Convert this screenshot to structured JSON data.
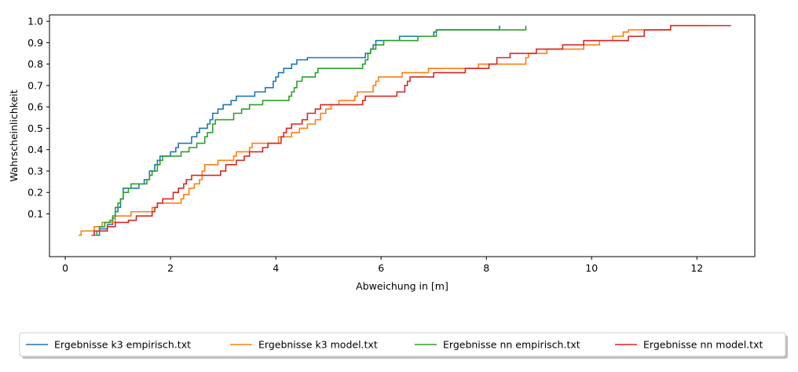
{
  "chart_data": {
    "type": "line",
    "subtype": "empirical-cdf-step",
    "title": "",
    "xlabel": "Abweichung in [m]",
    "ylabel": "Wahrscheinlichkeit",
    "xlim": [
      -0.3,
      13.1
    ],
    "ylim": [
      -0.1,
      1.03
    ],
    "xticks": [
      0,
      2,
      4,
      6,
      8,
      10,
      12
    ],
    "xtick_labels": [
      "0",
      "2",
      "4",
      "6",
      "8",
      "10",
      "12"
    ],
    "yticks": [
      0.1,
      0.2,
      0.3,
      0.4,
      0.5,
      0.6,
      0.7,
      0.8,
      0.9,
      1.0
    ],
    "ytick_labels": [
      "0.1",
      "0.2",
      "0.3",
      "0.4",
      "0.5",
      "0.6",
      "0.7",
      "0.8",
      "0.9",
      "1.0"
    ],
    "grid": false,
    "legend_position": "bottom-center, outside plot, single row",
    "series": [
      {
        "name": "Ergebnisse k3 empirisch.txt",
        "color": "#1f77b4",
        "points": [
          [
            0.6,
            0.0
          ],
          [
            0.65,
            0.03
          ],
          [
            0.8,
            0.05
          ],
          [
            0.9,
            0.08
          ],
          [
            0.95,
            0.11
          ],
          [
            1.0,
            0.13
          ],
          [
            1.05,
            0.17
          ],
          [
            1.1,
            0.22
          ],
          [
            1.2,
            0.22
          ],
          [
            1.4,
            0.24
          ],
          [
            1.5,
            0.26
          ],
          [
            1.6,
            0.3
          ],
          [
            1.7,
            0.33
          ],
          [
            1.75,
            0.35
          ],
          [
            1.8,
            0.37
          ],
          [
            1.9,
            0.37
          ],
          [
            2.0,
            0.39
          ],
          [
            2.1,
            0.41
          ],
          [
            2.15,
            0.43
          ],
          [
            2.3,
            0.43
          ],
          [
            2.4,
            0.46
          ],
          [
            2.5,
            0.48
          ],
          [
            2.55,
            0.5
          ],
          [
            2.7,
            0.52
          ],
          [
            2.75,
            0.54
          ],
          [
            2.8,
            0.57
          ],
          [
            2.9,
            0.59
          ],
          [
            3.0,
            0.61
          ],
          [
            3.15,
            0.63
          ],
          [
            3.25,
            0.65
          ],
          [
            3.4,
            0.65
          ],
          [
            3.6,
            0.67
          ],
          [
            3.8,
            0.69
          ],
          [
            3.95,
            0.72
          ],
          [
            4.0,
            0.74
          ],
          [
            4.05,
            0.76
          ],
          [
            4.15,
            0.78
          ],
          [
            4.3,
            0.8
          ],
          [
            4.4,
            0.82
          ],
          [
            4.6,
            0.83
          ],
          [
            5.7,
            0.85
          ],
          [
            5.8,
            0.87
          ],
          [
            5.85,
            0.89
          ],
          [
            5.9,
            0.91
          ],
          [
            6.35,
            0.93
          ],
          [
            7.0,
            0.95
          ],
          [
            7.05,
            0.96
          ],
          [
            8.25,
            0.98
          ]
        ]
      },
      {
        "name": "Ergebnisse k3 model.txt",
        "color": "#ff7f0e",
        "points": [
          [
            0.25,
            0.0
          ],
          [
            0.3,
            0.02
          ],
          [
            0.55,
            0.04
          ],
          [
            0.7,
            0.06
          ],
          [
            0.95,
            0.09
          ],
          [
            1.25,
            0.11
          ],
          [
            1.65,
            0.13
          ],
          [
            1.75,
            0.15
          ],
          [
            2.2,
            0.17
          ],
          [
            2.25,
            0.19
          ],
          [
            2.35,
            0.22
          ],
          [
            2.45,
            0.24
          ],
          [
            2.55,
            0.26
          ],
          [
            2.6,
            0.3
          ],
          [
            2.65,
            0.33
          ],
          [
            2.9,
            0.35
          ],
          [
            3.2,
            0.37
          ],
          [
            3.25,
            0.39
          ],
          [
            3.5,
            0.41
          ],
          [
            3.55,
            0.43
          ],
          [
            4.05,
            0.46
          ],
          [
            4.3,
            0.48
          ],
          [
            4.45,
            0.5
          ],
          [
            4.6,
            0.52
          ],
          [
            4.75,
            0.54
          ],
          [
            4.85,
            0.57
          ],
          [
            4.95,
            0.59
          ],
          [
            5.05,
            0.61
          ],
          [
            5.2,
            0.63
          ],
          [
            5.5,
            0.65
          ],
          [
            5.55,
            0.67
          ],
          [
            5.85,
            0.7
          ],
          [
            5.9,
            0.72
          ],
          [
            5.95,
            0.74
          ],
          [
            6.4,
            0.76
          ],
          [
            6.9,
            0.78
          ],
          [
            7.85,
            0.8
          ],
          [
            8.25,
            0.8
          ],
          [
            8.75,
            0.83
          ],
          [
            8.8,
            0.85
          ],
          [
            9.15,
            0.87
          ],
          [
            9.85,
            0.89
          ],
          [
            10.15,
            0.91
          ],
          [
            10.4,
            0.93
          ],
          [
            10.6,
            0.95
          ],
          [
            10.7,
            0.96
          ],
          [
            11.5,
            0.98
          ]
        ]
      },
      {
        "name": "Ergebnisse nn empirisch.txt",
        "color": "#2ca02c",
        "points": [
          [
            0.55,
            0.0
          ],
          [
            0.6,
            0.02
          ],
          [
            0.65,
            0.04
          ],
          [
            0.75,
            0.06
          ],
          [
            0.85,
            0.07
          ],
          [
            0.9,
            0.09
          ],
          [
            0.95,
            0.13
          ],
          [
            1.0,
            0.15
          ],
          [
            1.05,
            0.17
          ],
          [
            1.1,
            0.2
          ],
          [
            1.2,
            0.22
          ],
          [
            1.25,
            0.24
          ],
          [
            1.55,
            0.26
          ],
          [
            1.6,
            0.28
          ],
          [
            1.65,
            0.3
          ],
          [
            1.75,
            0.33
          ],
          [
            1.8,
            0.35
          ],
          [
            1.85,
            0.37
          ],
          [
            2.2,
            0.39
          ],
          [
            2.35,
            0.41
          ],
          [
            2.5,
            0.43
          ],
          [
            2.65,
            0.46
          ],
          [
            2.7,
            0.48
          ],
          [
            2.8,
            0.52
          ],
          [
            2.85,
            0.54
          ],
          [
            3.2,
            0.57
          ],
          [
            3.35,
            0.59
          ],
          [
            3.5,
            0.61
          ],
          [
            3.75,
            0.63
          ],
          [
            4.25,
            0.65
          ],
          [
            4.3,
            0.67
          ],
          [
            4.35,
            0.69
          ],
          [
            4.4,
            0.72
          ],
          [
            4.5,
            0.74
          ],
          [
            4.75,
            0.76
          ],
          [
            4.8,
            0.78
          ],
          [
            5.65,
            0.8
          ],
          [
            5.7,
            0.82
          ],
          [
            5.75,
            0.85
          ],
          [
            5.8,
            0.87
          ],
          [
            5.9,
            0.89
          ],
          [
            6.05,
            0.91
          ],
          [
            6.7,
            0.93
          ],
          [
            7.05,
            0.96
          ],
          [
            8.75,
            0.98
          ]
        ]
      },
      {
        "name": "Ergebnisse nn model.txt",
        "color": "#d62728",
        "points": [
          [
            0.5,
            0.0
          ],
          [
            0.55,
            0.02
          ],
          [
            0.8,
            0.04
          ],
          [
            0.95,
            0.06
          ],
          [
            1.2,
            0.07
          ],
          [
            1.35,
            0.09
          ],
          [
            1.65,
            0.11
          ],
          [
            1.7,
            0.13
          ],
          [
            1.75,
            0.15
          ],
          [
            1.85,
            0.17
          ],
          [
            2.05,
            0.2
          ],
          [
            2.15,
            0.22
          ],
          [
            2.25,
            0.24
          ],
          [
            2.3,
            0.26
          ],
          [
            2.4,
            0.28
          ],
          [
            2.95,
            0.3
          ],
          [
            3.05,
            0.33
          ],
          [
            3.25,
            0.35
          ],
          [
            3.4,
            0.37
          ],
          [
            3.5,
            0.39
          ],
          [
            3.75,
            0.41
          ],
          [
            3.85,
            0.43
          ],
          [
            4.1,
            0.46
          ],
          [
            4.15,
            0.48
          ],
          [
            4.2,
            0.5
          ],
          [
            4.3,
            0.52
          ],
          [
            4.5,
            0.54
          ],
          [
            4.6,
            0.57
          ],
          [
            4.75,
            0.59
          ],
          [
            4.85,
            0.61
          ],
          [
            5.65,
            0.63
          ],
          [
            5.7,
            0.65
          ],
          [
            6.3,
            0.67
          ],
          [
            6.45,
            0.7
          ],
          [
            6.5,
            0.72
          ],
          [
            6.55,
            0.74
          ],
          [
            7.0,
            0.76
          ],
          [
            7.6,
            0.78
          ],
          [
            8.05,
            0.8
          ],
          [
            8.2,
            0.83
          ],
          [
            8.45,
            0.85
          ],
          [
            8.95,
            0.87
          ],
          [
            9.2,
            0.87
          ],
          [
            9.45,
            0.89
          ],
          [
            9.85,
            0.91
          ],
          [
            10.7,
            0.93
          ],
          [
            11.0,
            0.96
          ],
          [
            11.5,
            0.98
          ]
        ]
      }
    ]
  }
}
